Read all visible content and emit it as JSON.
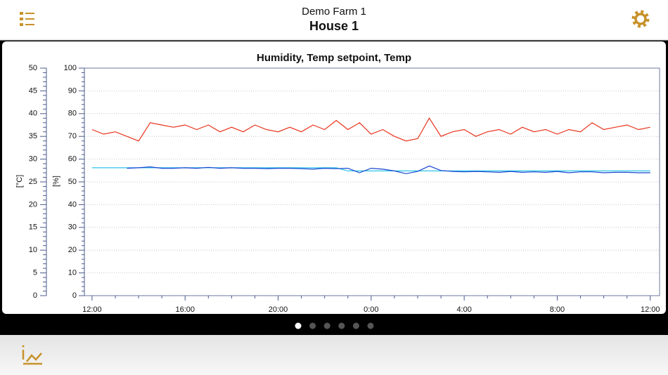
{
  "header": {
    "subtitle": "Demo Farm 1",
    "title": "House 1"
  },
  "chart_data": {
    "type": "line",
    "title": "Humidity, Temp setpoint, Temp",
    "ylabel": "[°C]",
    "y2label": "[%]",
    "ylim": [
      0,
      50
    ],
    "yticks": [
      0,
      5,
      10,
      15,
      20,
      25,
      30,
      35,
      40,
      45,
      50
    ],
    "y2lim": [
      0,
      100
    ],
    "y2ticks": [
      0,
      10,
      20,
      30,
      40,
      50,
      60,
      70,
      80,
      90,
      100
    ],
    "xlim": [
      -0.33,
      24.4
    ],
    "xticks": [
      {
        "value": 0,
        "label": "12:00"
      },
      {
        "value": 4,
        "label": "16:00"
      },
      {
        "value": 8,
        "label": "20:00"
      },
      {
        "value": 12,
        "label": "0:00"
      },
      {
        "value": 16,
        "label": "4:00"
      },
      {
        "value": 20,
        "label": "8:00"
      },
      {
        "value": 24,
        "label": "12:00"
      }
    ],
    "grid": true,
    "x": [
      0,
      0.5,
      1,
      1.5,
      2,
      2.5,
      3,
      3.5,
      4,
      4.5,
      5,
      5.5,
      6,
      6.5,
      7,
      7.5,
      8,
      8.5,
      9,
      9.5,
      10,
      10.5,
      11,
      11.5,
      12,
      12.5,
      13,
      13.5,
      14,
      14.5,
      15,
      15.5,
      16,
      16.5,
      17,
      17.5,
      18,
      18.5,
      19,
      19.5,
      20,
      20.5,
      21,
      21.5,
      22,
      22.5,
      23,
      23.5,
      24
    ],
    "series": [
      {
        "name": "Humidity",
        "color": "#e8341c",
        "axis": "y2",
        "values": [
          73,
          71,
          72,
          70,
          68,
          76,
          75,
          74,
          75,
          73,
          75,
          72,
          74,
          72,
          75,
          73,
          72,
          74,
          72,
          75,
          73,
          77,
          73,
          76,
          71,
          73,
          70,
          68,
          69,
          78,
          70,
          72,
          73,
          70,
          72,
          73,
          71,
          74,
          72,
          73,
          71,
          73,
          72,
          76,
          73,
          74,
          75,
          73,
          74
        ]
      },
      {
        "name": "Temp setpoint",
        "color": "#2ec4e8",
        "values": [
          28.1,
          28.1,
          28.1,
          28.1,
          28.1,
          28.1,
          28.1,
          28.1,
          28.1,
          28.1,
          28.1,
          28.1,
          28.1,
          28.1,
          28.1,
          28.1,
          28.1,
          28.1,
          28.1,
          28.1,
          28.1,
          28.1,
          27.4,
          27.4,
          27.4,
          27.4,
          27.4,
          27.4,
          27.4,
          27.4,
          27.4,
          27.4,
          27.4,
          27.4,
          27.4,
          27.4,
          27.4,
          27.4,
          27.4,
          27.4,
          27.4,
          27.4,
          27.4,
          27.4,
          27.4,
          27.4,
          27.4,
          27.4,
          27.4
        ]
      },
      {
        "name": "Temp",
        "color": "#1746d0",
        "values": [
          null,
          null,
          null,
          28.0,
          28.1,
          28.3,
          28.0,
          28.0,
          28.1,
          28.0,
          28.2,
          28.0,
          28.1,
          28.0,
          28.0,
          27.9,
          28.0,
          28.0,
          27.9,
          27.8,
          28.0,
          27.9,
          28.0,
          27.0,
          28.0,
          27.8,
          27.4,
          26.8,
          27.3,
          28.5,
          27.5,
          27.3,
          27.2,
          27.3,
          27.2,
          27.1,
          27.3,
          27.1,
          27.2,
          27.1,
          27.3,
          27.0,
          27.2,
          27.2,
          27.0,
          27.1,
          27.1,
          27.0,
          27.0
        ]
      }
    ]
  },
  "pager": {
    "pages": 6,
    "current": 0
  }
}
